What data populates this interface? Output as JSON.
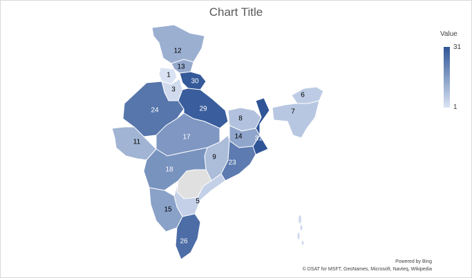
{
  "chart_data": {
    "type": "filled-map",
    "title": "Chart Title",
    "legend": {
      "title": "Value",
      "max": 31,
      "min": 1,
      "max_label": "31",
      "min_label": "1",
      "placement": "right"
    },
    "colors": {
      "low": "#dae3f3",
      "high": "#2f5597",
      "no_data": "#e0e0e0",
      "border": "#ffffff"
    },
    "regions": [
      {
        "value": 12,
        "label": "12"
      },
      {
        "value": 13,
        "label": "13"
      },
      {
        "value": 1,
        "label": "1"
      },
      {
        "value": 3,
        "label": "3"
      },
      {
        "value": 30,
        "label": "30"
      },
      {
        "value": 24,
        "label": "24"
      },
      {
        "value": 29,
        "label": "29"
      },
      {
        "value": 6,
        "label": "6"
      },
      {
        "value": 7,
        "label": "7"
      },
      {
        "value": 8,
        "label": "8"
      },
      {
        "value": 14,
        "label": "14"
      },
      {
        "value": 31,
        "label": "31"
      },
      {
        "value": 17,
        "label": "17"
      },
      {
        "value": 11,
        "label": "11"
      },
      {
        "value": 9,
        "label": "9"
      },
      {
        "value": 23,
        "label": "23"
      },
      {
        "value": 18,
        "label": "18"
      },
      {
        "value": 5,
        "label": "5"
      },
      {
        "value": 15,
        "label": "15"
      },
      {
        "value": 26,
        "label": "26"
      }
    ],
    "no_data_regions": 1
  },
  "attribution": {
    "line1": "Powered by Bing",
    "line2": "© DSAT for MSFT, GeoNames, Microsoft, Navteq, Wikipedia"
  }
}
